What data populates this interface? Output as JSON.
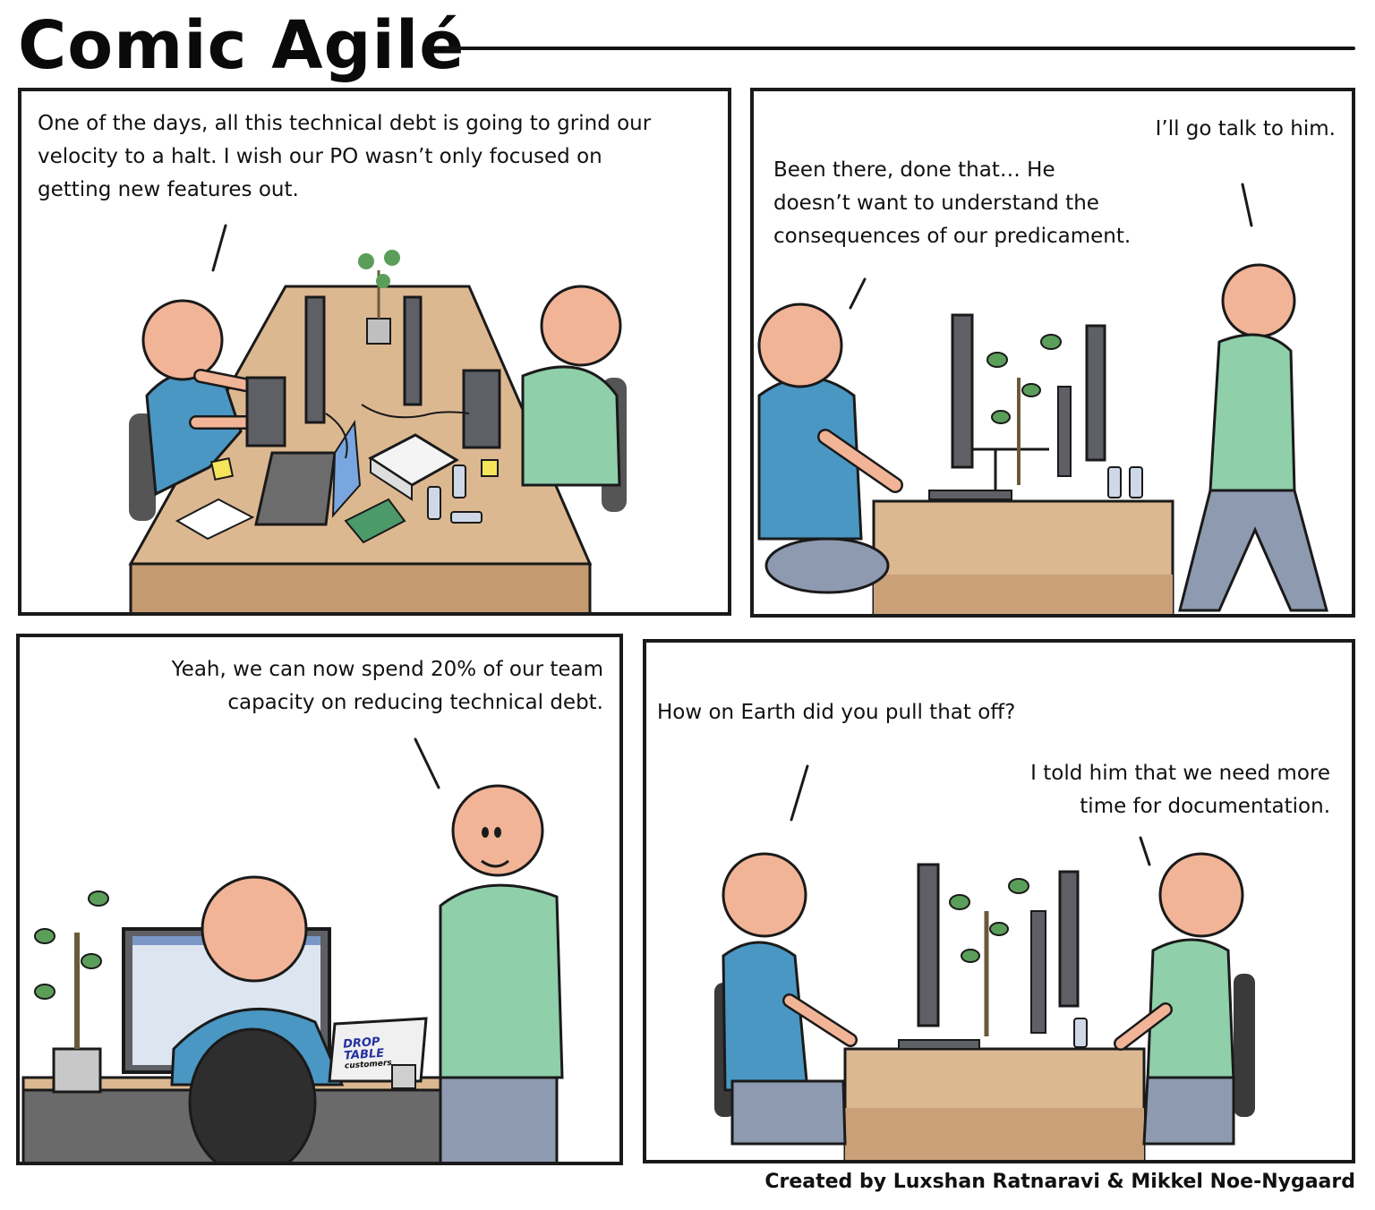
{
  "comic_title": "Comic Agilé",
  "panels": [
    {
      "speech": [
        "One of the days, all this technical debt is going to grind our\nvelocity to a halt. I wish our PO wasn’t only focused on\ngetting new features out."
      ]
    },
    {
      "speech": [
        "I’ll go talk to him.",
        "Been there, done that… He\ndoesn’t want to understand the\nconsequences of our predicament."
      ]
    },
    {
      "speech": [
        "Yeah, we can now spend 20% of our team\ncapacity on reducing technical debt."
      ],
      "laptop_sticker": [
        "DROP",
        "TABLE",
        "customers"
      ]
    },
    {
      "speech": [
        "How on Earth did you pull that off?",
        "I told him that we need more\ntime for documentation."
      ]
    }
  ],
  "credit": "Created by Luxshan Ratnaravi & Mikkel Noe-Nygaard",
  "colors": {
    "skin": "#f2b497",
    "shirt_blue": "#4a97c4",
    "shirt_green": "#8fcfaa",
    "pants": "#8e9ab0",
    "desk": "#dcb891",
    "desk_dark": "#b38862",
    "monitor": "#5e6066",
    "plant": "#5a9e5a",
    "ink": "#1a1a1a"
  }
}
